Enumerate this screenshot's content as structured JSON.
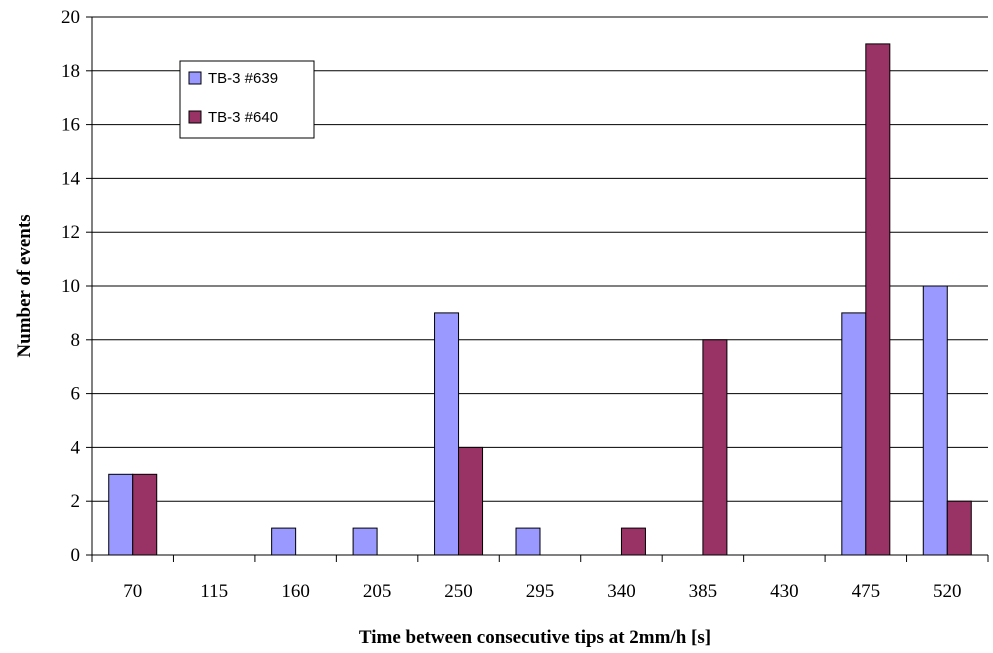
{
  "chart_data": {
    "type": "bar",
    "title": "",
    "xlabel": "Time between consecutive tips at 2mm/h [s]",
    "ylabel": "Number of events",
    "categories": [
      "70",
      "115",
      "160",
      "205",
      "250",
      "295",
      "340",
      "385",
      "430",
      "475",
      "520"
    ],
    "series": [
      {
        "name": "TB-3 #639",
        "color": "#9999ff",
        "values": [
          3,
          0,
          1,
          1,
          9,
          1,
          0,
          0,
          0,
          9,
          10
        ]
      },
      {
        "name": "TB-3 #640",
        "color": "#993366",
        "values": [
          3,
          0,
          0,
          0,
          4,
          0,
          1,
          8,
          0,
          19,
          2
        ]
      }
    ],
    "ylim": [
      0,
      20
    ],
    "yticks": [
      0,
      2,
      4,
      6,
      8,
      10,
      12,
      14,
      16,
      18,
      20
    ],
    "grid": true,
    "legend_position": "top-left"
  }
}
